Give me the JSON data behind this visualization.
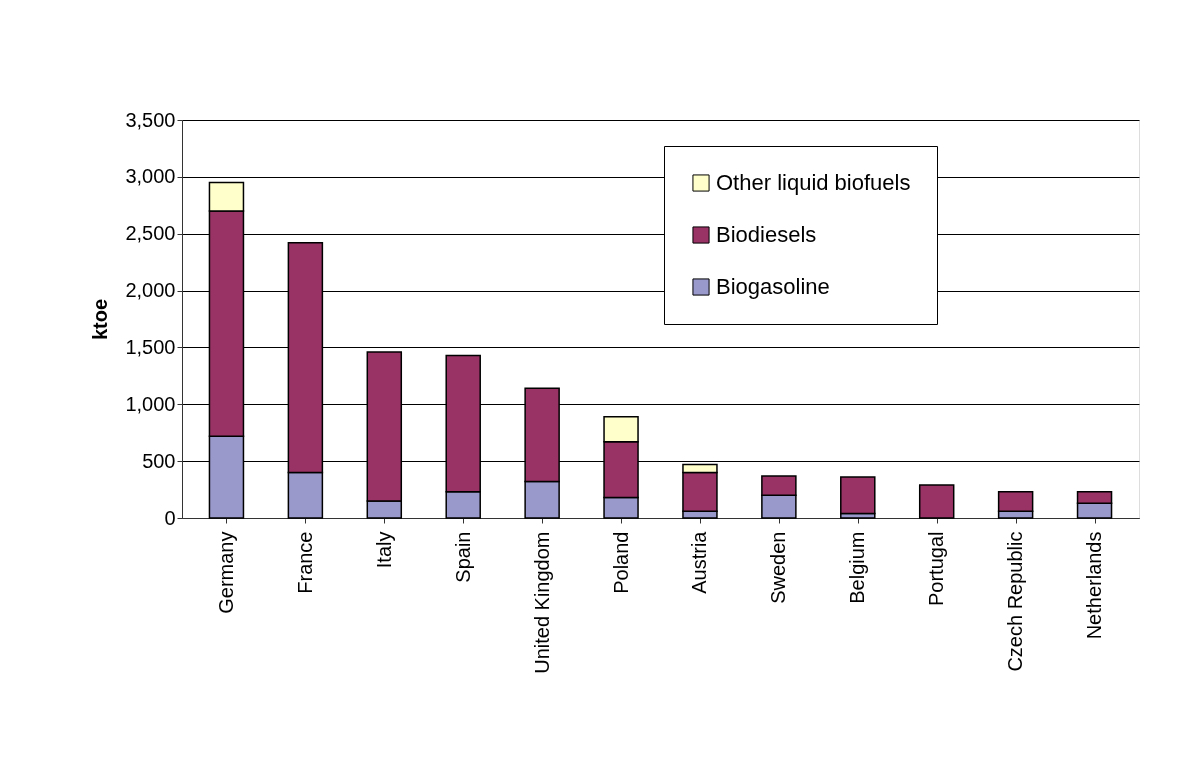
{
  "chart_data": {
    "type": "bar",
    "stacked": true,
    "ylabel": "ktoe",
    "categories": [
      "Germany",
      "France",
      "Italy",
      "Spain",
      "United Kingdom",
      "Poland",
      "Austria",
      "Sweden",
      "Belgium",
      "Portugal",
      "Czech Republic",
      "Netherlands"
    ],
    "series": [
      {
        "name": "Biogasoline",
        "color": "#9999cc",
        "values": [
          720,
          400,
          150,
          230,
          320,
          180,
          60,
          200,
          40,
          null,
          60,
          130
        ]
      },
      {
        "name": "Biodiesels",
        "color": "#993366",
        "values": [
          1980,
          2020,
          1310,
          1200,
          820,
          490,
          340,
          170,
          320,
          290,
          170,
          100
        ]
      },
      {
        "name": "Other liquid biofuels",
        "color": "#ffffcc",
        "values": [
          250,
          null,
          null,
          null,
          null,
          220,
          70,
          null,
          null,
          null,
          null,
          null
        ]
      }
    ],
    "ylim": [
      0,
      3500
    ],
    "yticks": [
      0,
      500,
      {
        "value": 1000,
        "label": "1,000"
      },
      {
        "value": 1500,
        "label": "1,500"
      },
      {
        "value": 2000,
        "label": "2,000"
      },
      {
        "value": 2500,
        "label": "2,500"
      },
      {
        "value": 3000,
        "label": "3,000"
      },
      {
        "value": 3500,
        "label": "3,500"
      }
    ],
    "grid": "y",
    "legend": "top right"
  }
}
